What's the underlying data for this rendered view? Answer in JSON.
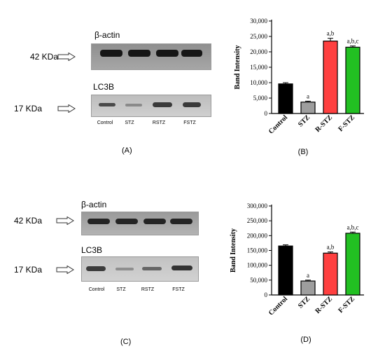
{
  "panels": [
    {
      "id": "A",
      "caption": "(A)",
      "markers": [
        "42 KDa",
        "17 KDa"
      ],
      "blot_labels": [
        "β-actin",
        "LC3B"
      ],
      "lanes": [
        "Control",
        "STZ",
        "RSTZ",
        "FSTZ"
      ]
    },
    {
      "id": "C",
      "caption": "(C)",
      "markers": [
        "42 KDa",
        "17 KDa"
      ],
      "blot_labels": [
        "β-actin",
        "LC3B"
      ],
      "lanes": [
        "Control",
        "STZ",
        "RSTZ",
        "FSTZ"
      ]
    }
  ],
  "chart_data": [
    {
      "type": "bar",
      "caption": "(B)",
      "ylabel": "Band Intensity",
      "categories": [
        "Control",
        "STZ",
        "R-STZ",
        "F-STZ"
      ],
      "values": [
        9600,
        3700,
        23500,
        21500
      ],
      "errors": [
        400,
        300,
        900,
        400
      ],
      "annotations": [
        "",
        "a",
        "a,b",
        "a,b,c"
      ],
      "yticks": [
        "0",
        "5,000",
        "10,000",
        "15,000",
        "20,000",
        "25,000",
        "30,000"
      ],
      "ylim": [
        0,
        30000
      ],
      "colors": [
        "#000000",
        "#9e9e9e",
        "#ff4040",
        "#22c022"
      ]
    },
    {
      "type": "bar",
      "caption": "(D)",
      "ylabel": "Band Intensity",
      "categories": [
        "Control",
        "STZ",
        "R-STZ",
        "F-STZ"
      ],
      "values": [
        165000,
        47000,
        141000,
        208000
      ],
      "errors": [
        4000,
        3000,
        4000,
        4000
      ],
      "annotations": [
        "",
        "a",
        "a,b",
        "a,b,c"
      ],
      "yticks": [
        "0",
        "50,000",
        "100,000",
        "150,000",
        "200,000",
        "250,000",
        "300,000"
      ],
      "ylim": [
        0,
        300000
      ],
      "colors": [
        "#000000",
        "#9e9e9e",
        "#ff4040",
        "#22c022"
      ]
    }
  ]
}
